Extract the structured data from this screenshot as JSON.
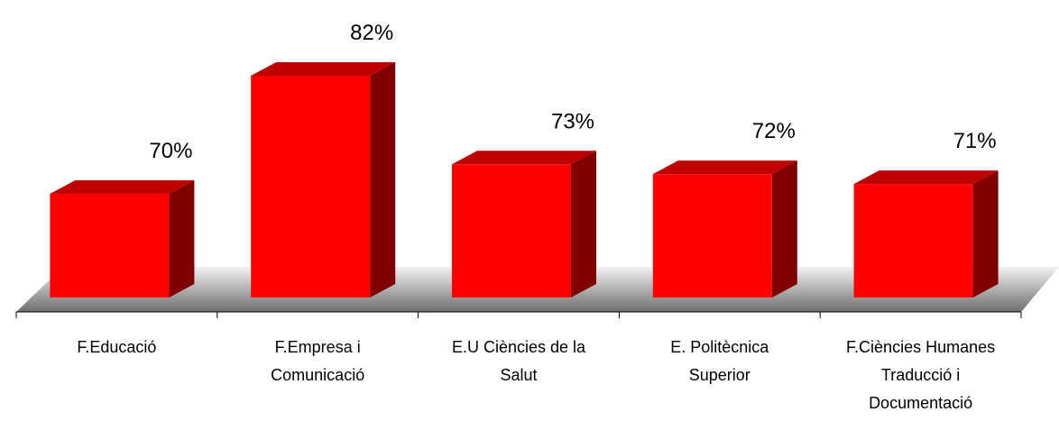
{
  "chart_data": {
    "type": "bar3d",
    "categories": [
      "F.Educació",
      "F.Empresa i Comunicació",
      "E.U Ciències de la Salut",
      "E. Politècnica Superior",
      "F.Ciències Humanes Traducció i Documentació"
    ],
    "values": [
      70,
      82,
      73,
      72,
      71
    ],
    "value_labels": [
      "70%",
      "82%",
      "73%",
      "72%",
      "71%"
    ],
    "color": "#ff0000"
  }
}
